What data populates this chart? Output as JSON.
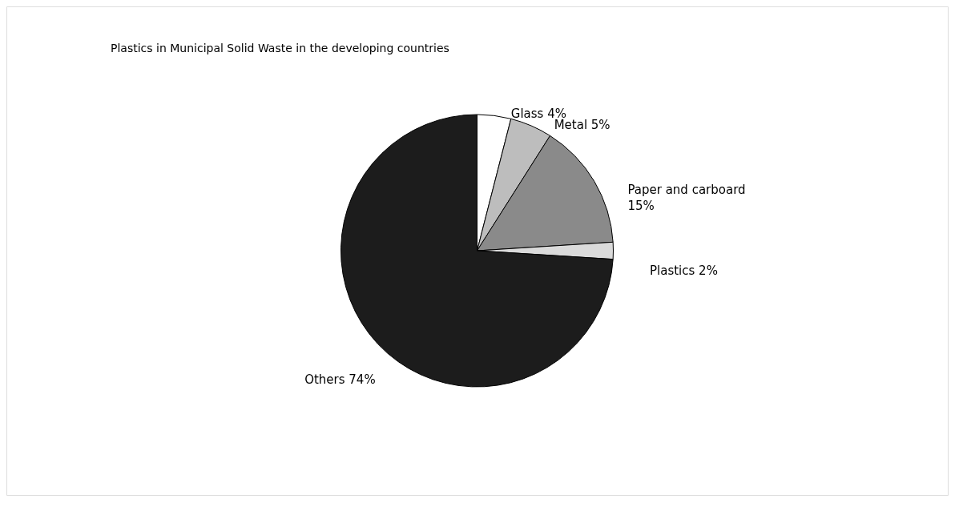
{
  "chart_data": {
    "type": "pie",
    "title": "Plastics in Municipal Solid Waste in the developing countries",
    "categories": [
      "Glass",
      "Metal",
      "Paper and carboard",
      "Plastics",
      "Others"
    ],
    "values": [
      4,
      5,
      15,
      2,
      74
    ],
    "colors": [
      "#ffffff",
      "#bdbdbd",
      "#8a8a8a",
      "#dadada",
      "#1c1c1c"
    ],
    "value_labels": [
      "4%",
      "5%",
      "15%",
      "2%",
      "74%"
    ]
  }
}
